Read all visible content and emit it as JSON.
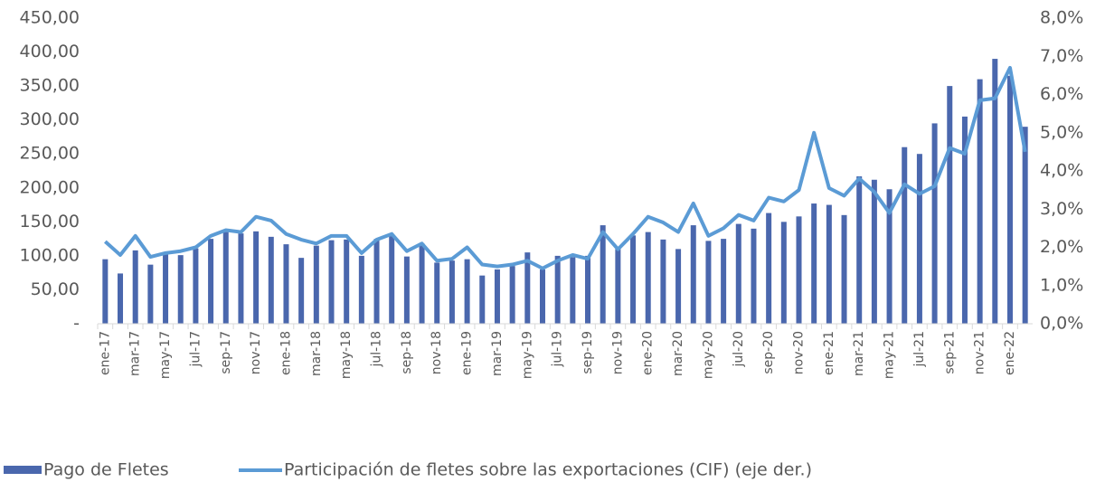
{
  "chart_data": {
    "type": "bar-line",
    "categories": [
      "ene-17",
      null,
      "mar-17",
      null,
      "may-17",
      null,
      "jul-17",
      null,
      "sep-17",
      null,
      "nov-17",
      null,
      "ene-18",
      null,
      "mar-18",
      null,
      "may-18",
      null,
      "jul-18",
      null,
      "sep-18",
      null,
      "nov-18",
      null,
      "ene-19",
      null,
      "mar-19",
      null,
      "may-19",
      null,
      "jul-19",
      null,
      "sep-19",
      null,
      "nov-19",
      null,
      "ene-20",
      null,
      "mar-20",
      null,
      "may-20",
      null,
      "jul-20",
      null,
      "sep-20",
      null,
      "nov-20",
      null,
      "ene-21",
      null,
      "mar-21",
      null,
      "may-21",
      null,
      "jul-21",
      null,
      "sep-21",
      null,
      "nov-21",
      null,
      "ene-22",
      null
    ],
    "series": [
      {
        "name": "Pago de Fletes",
        "type": "bar",
        "color": "#4a67ad",
        "values": [
          95,
          74,
          108,
          87,
          103,
          101,
          111,
          125,
          135,
          133,
          136,
          128,
          117,
          97,
          115,
          123,
          124,
          100,
          125,
          130,
          99,
          118,
          90,
          93,
          95,
          71,
          80,
          85,
          105,
          80,
          100,
          98,
          100,
          145,
          110,
          130,
          135,
          124,
          110,
          145,
          122,
          125,
          147,
          140,
          163,
          150,
          158,
          177,
          175,
          160,
          217,
          212,
          198,
          260,
          250,
          295,
          350,
          305,
          360,
          390,
          365,
          290
        ]
      },
      {
        "name": "Participación de fletes sobre las exportaciones (CIF) (eje der.)",
        "type": "line",
        "axis": "y2",
        "color": "#5b9bd5",
        "values": [
          2.15,
          1.8,
          2.3,
          1.75,
          1.85,
          1.9,
          2.0,
          2.3,
          2.45,
          2.4,
          2.8,
          2.7,
          2.35,
          2.2,
          2.1,
          2.3,
          2.3,
          1.85,
          2.2,
          2.35,
          1.9,
          2.1,
          1.65,
          1.7,
          2.0,
          1.55,
          1.5,
          1.55,
          1.65,
          1.45,
          1.65,
          1.8,
          1.7,
          2.4,
          1.95,
          2.35,
          2.8,
          2.65,
          2.4,
          3.15,
          2.3,
          2.5,
          2.85,
          2.7,
          3.3,
          3.2,
          3.5,
          5.0,
          3.55,
          3.35,
          3.8,
          3.45,
          2.9,
          3.65,
          3.4,
          3.6,
          4.6,
          4.45,
          5.85,
          5.9,
          6.7,
          4.5
        ]
      }
    ],
    "ylim": [
      0,
      450
    ],
    "yticks": [
      {
        "value": 0,
        "label": "-"
      },
      {
        "value": 50,
        "label": "50,00"
      },
      {
        "value": 100,
        "label": "100,00"
      },
      {
        "value": 150,
        "label": "150,00"
      },
      {
        "value": 200,
        "label": "200,00"
      },
      {
        "value": 250,
        "label": "250,00"
      },
      {
        "value": 300,
        "label": "300,00"
      },
      {
        "value": 350,
        "label": "350,00"
      },
      {
        "value": 400,
        "label": "400,00"
      },
      {
        "value": 450,
        "label": "450,00"
      }
    ],
    "y2lim": [
      0,
      8
    ],
    "y2ticks": [
      {
        "value": 0,
        "label": "0,0%"
      },
      {
        "value": 1,
        "label": "1,0%"
      },
      {
        "value": 2,
        "label": "2,0%"
      },
      {
        "value": 3,
        "label": "3,0%"
      },
      {
        "value": 4,
        "label": "4,0%"
      },
      {
        "value": 5,
        "label": "5,0%"
      },
      {
        "value": 6,
        "label": "6,0%"
      },
      {
        "value": 7,
        "label": "7,0%"
      },
      {
        "value": 8,
        "label": "8,0%"
      }
    ],
    "legend": "bottom"
  }
}
